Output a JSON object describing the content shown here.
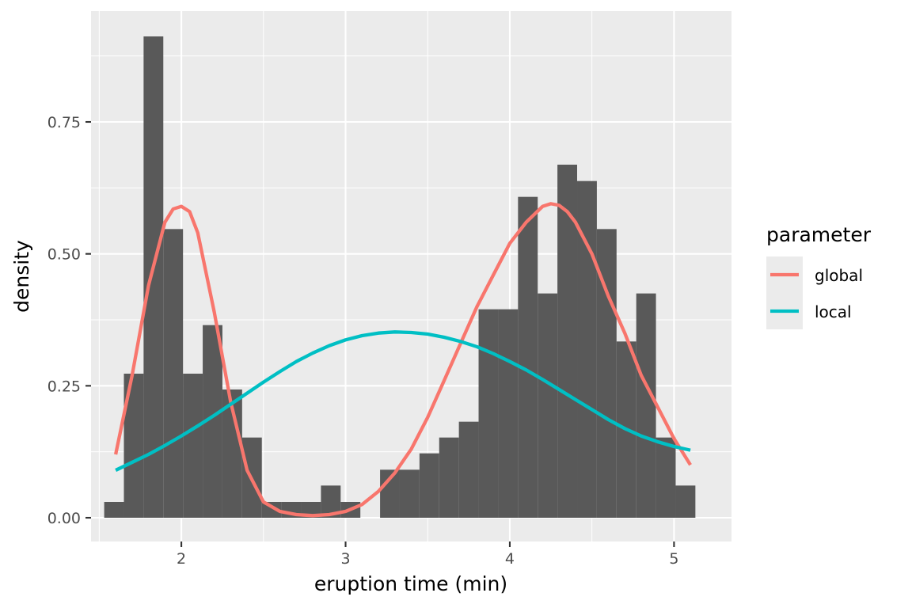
{
  "chart_data": {
    "type": "bar",
    "title": "",
    "xlabel": "eruption time (min)",
    "ylabel": "density",
    "xlim": [
      1.45,
      5.35
    ],
    "ylim": [
      -0.045,
      0.96
    ],
    "x_ticks": [
      2,
      3,
      4,
      5
    ],
    "x_tick_labels": [
      "2",
      "3",
      "4",
      "5"
    ],
    "y_ticks": [
      0,
      0.25,
      0.5,
      0.75
    ],
    "y_tick_labels": [
      "0.00",
      "0.25",
      "0.50",
      "0.75"
    ],
    "grid": true,
    "legend_position": "right",
    "legend_title": "parameter",
    "histogram": {
      "bin_width": 0.12,
      "bin_starts": [
        1.53,
        1.65,
        1.77,
        1.89,
        2.01,
        2.13,
        2.25,
        2.37,
        2.49,
        2.61,
        2.73,
        2.85,
        2.97,
        3.09,
        3.21,
        3.33,
        3.45,
        3.57,
        3.69,
        3.81,
        3.93,
        4.05,
        4.17,
        4.29,
        4.41,
        4.53,
        4.65,
        4.77,
        4.89,
        5.01
      ],
      "density": [
        0.03,
        0.273,
        0.912,
        0.547,
        0.273,
        0.365,
        0.243,
        0.152,
        0.03,
        0.03,
        0.03,
        0.061,
        0.03,
        0,
        0.091,
        0.091,
        0.122,
        0.152,
        0.182,
        0.395,
        0.395,
        0.608,
        0.425,
        0.669,
        0.638,
        0.547,
        0.334,
        0.425,
        0.152,
        0.061
      ],
      "fill": "#595959"
    },
    "series": [
      {
        "name": "global",
        "color": "#F8766D",
        "x": [
          1.6,
          1.7,
          1.8,
          1.9,
          1.95,
          2.0,
          2.05,
          2.1,
          2.2,
          2.3,
          2.4,
          2.5,
          2.6,
          2.7,
          2.8,
          2.9,
          3.0,
          3.1,
          3.2,
          3.3,
          3.4,
          3.5,
          3.6,
          3.7,
          3.8,
          3.9,
          4.0,
          4.1,
          4.2,
          4.25,
          4.3,
          4.35,
          4.4,
          4.5,
          4.6,
          4.7,
          4.8,
          4.9,
          5.0,
          5.1
        ],
        "y": [
          0.12,
          0.27,
          0.44,
          0.56,
          0.585,
          0.59,
          0.58,
          0.54,
          0.39,
          0.22,
          0.09,
          0.03,
          0.012,
          0.006,
          0.004,
          0.006,
          0.012,
          0.025,
          0.05,
          0.085,
          0.13,
          0.19,
          0.26,
          0.33,
          0.4,
          0.46,
          0.52,
          0.56,
          0.59,
          0.595,
          0.592,
          0.58,
          0.56,
          0.5,
          0.42,
          0.35,
          0.27,
          0.21,
          0.15,
          0.1
        ]
      },
      {
        "name": "local",
        "color": "#00BFC4",
        "x": [
          1.6,
          1.7,
          1.8,
          1.9,
          2.0,
          2.1,
          2.2,
          2.3,
          2.4,
          2.5,
          2.6,
          2.7,
          2.8,
          2.9,
          3.0,
          3.1,
          3.2,
          3.3,
          3.4,
          3.5,
          3.6,
          3.7,
          3.8,
          3.9,
          4.0,
          4.1,
          4.2,
          4.3,
          4.4,
          4.5,
          4.6,
          4.7,
          4.8,
          4.9,
          5.0,
          5.1
        ],
        "y": [
          0.09,
          0.105,
          0.12,
          0.137,
          0.155,
          0.174,
          0.194,
          0.215,
          0.236,
          0.257,
          0.277,
          0.296,
          0.312,
          0.326,
          0.337,
          0.345,
          0.35,
          0.352,
          0.351,
          0.348,
          0.342,
          0.334,
          0.324,
          0.311,
          0.296,
          0.28,
          0.262,
          0.243,
          0.224,
          0.205,
          0.186,
          0.169,
          0.155,
          0.144,
          0.135,
          0.128
        ]
      }
    ]
  }
}
